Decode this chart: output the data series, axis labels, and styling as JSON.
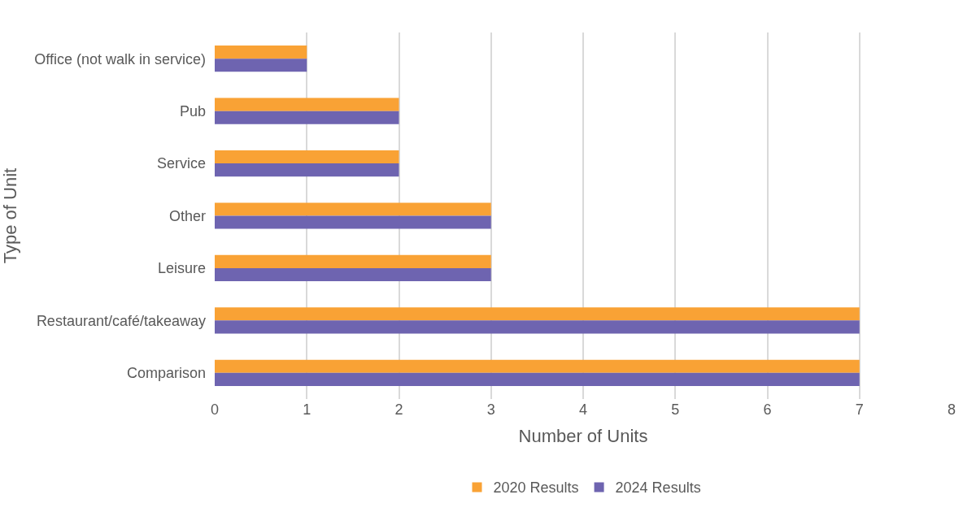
{
  "chart_data": {
    "type": "bar",
    "orientation": "horizontal",
    "xlabel": "Number of Units",
    "ylabel": "Type of Unit",
    "categories": [
      "Office (not walk in service)",
      "Pub",
      "Service",
      "Other",
      "Leisure",
      "Restaurant/café/takeaway",
      "Comparison"
    ],
    "series": [
      {
        "name": "2020 Results",
        "color": "#f9a235",
        "values": [
          1,
          2,
          2,
          3,
          3,
          7,
          7
        ]
      },
      {
        "name": "2024 Results",
        "color": "#6e64b0",
        "values": [
          1,
          2,
          2,
          3,
          3,
          7,
          7
        ]
      }
    ],
    "xlim": [
      0,
      8
    ],
    "xticks": [
      0,
      1,
      2,
      3,
      4,
      5,
      6,
      7,
      8
    ],
    "grid": "x",
    "legend": "bottom"
  }
}
